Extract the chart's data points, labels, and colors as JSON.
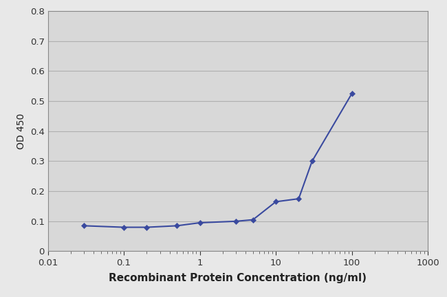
{
  "x_values": [
    0.03,
    0.1,
    0.2,
    0.5,
    1.0,
    3.0,
    5.0,
    10.0,
    20.0,
    30.0,
    100.0
  ],
  "y_values": [
    0.085,
    0.08,
    0.08,
    0.085,
    0.095,
    0.1,
    0.105,
    0.165,
    0.175,
    0.3,
    0.525
  ],
  "line_color": "#3a4a9f",
  "marker_color": "#3a4a9f",
  "marker_style": "D",
  "marker_size": 4.5,
  "line_width": 1.5,
  "xlabel": "Recombinant Protein Concentration (ng/ml)",
  "ylabel": "OD 450",
  "xlim": [
    0.01,
    1000
  ],
  "ylim": [
    0,
    0.8
  ],
  "yticks": [
    0,
    0.1,
    0.2,
    0.3,
    0.4,
    0.5,
    0.6,
    0.7,
    0.8
  ],
  "ytick_labels": [
    "0",
    "0.1",
    "0.2",
    "0.3",
    "0.4",
    "0.5",
    "0.6",
    "0.7",
    "0.8"
  ],
  "xtick_values": [
    0.01,
    0.1,
    1,
    10,
    100,
    1000
  ],
  "xtick_labels": [
    "0.01",
    "0.1",
    "1",
    "10",
    "100",
    "1000"
  ],
  "grid_color": "#b0b0b0",
  "background_color": "#e8e8e8",
  "plot_bg_color": "#d8d8d8",
  "xlabel_fontsize": 11,
  "ylabel_fontsize": 10,
  "tick_fontsize": 9.5
}
